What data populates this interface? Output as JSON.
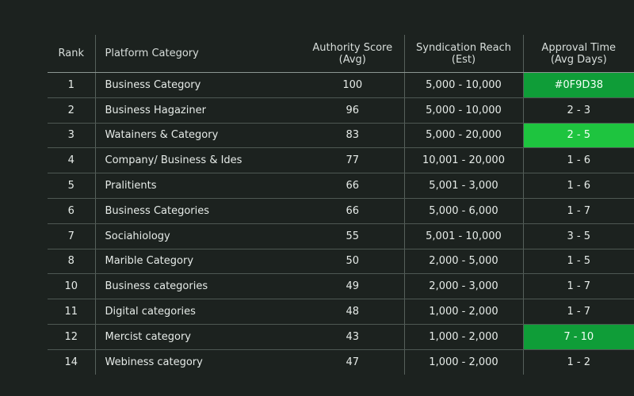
{
  "headers": {
    "rank": "Rank",
    "category": "Platform Category",
    "authority_line1": "Authority Score",
    "authority_line2": "(Avg)",
    "reach_line1": "Syndication Reach",
    "reach_line2": "(Est)",
    "approval_line1": "Approval Time",
    "approval_line2": "(Avg Days)"
  },
  "rows": [
    {
      "rank": "1",
      "category": "Business Category",
      "authority": "100",
      "reach": "5,000 - 10,000",
      "approval": "#0F9D38",
      "highlight": "dark"
    },
    {
      "rank": "2",
      "category": "Business Hagaziner",
      "authority": "96",
      "reach": "5,000 - 10,000",
      "approval": "2 - 3",
      "highlight": ""
    },
    {
      "rank": "3",
      "category": "Watainers & Category",
      "authority": "83",
      "reach": "5,000 - 20,000",
      "approval": "2 - 5",
      "highlight": "bright"
    },
    {
      "rank": "4",
      "category": "Company/ Business & Ides",
      "authority": "77",
      "reach": "10,001 - 20,000",
      "approval": "1 - 6",
      "highlight": ""
    },
    {
      "rank": "5",
      "category": "Pralitients",
      "authority": "66",
      "reach": "5,001 - 3,000",
      "approval": "1 - 6",
      "highlight": ""
    },
    {
      "rank": "6",
      "category": "Business Categories",
      "authority": "66",
      "reach": "5,000 - 6,000",
      "approval": "1 - 7",
      "highlight": ""
    },
    {
      "rank": "7",
      "category": "Sociahiology",
      "authority": "55",
      "reach": "5,001 - 10,000",
      "approval": "3 - 5",
      "highlight": ""
    },
    {
      "rank": "8",
      "category": "Marible Category",
      "authority": "50",
      "reach": "2,000 - 5,000",
      "approval": "1 - 5",
      "highlight": ""
    },
    {
      "rank": "10",
      "category": "Business categories",
      "authority": "49",
      "reach": "2,000 - 3,000",
      "approval": "1 - 7",
      "highlight": ""
    },
    {
      "rank": "11",
      "category": "Digital categories",
      "authority": "48",
      "reach": "1,000 - 2,000",
      "approval": "1 - 7",
      "highlight": ""
    },
    {
      "rank": "12",
      "category": "Mercist category",
      "authority": "43",
      "reach": "1,000 - 2,000",
      "approval": "7 - 10",
      "highlight": "dark"
    },
    {
      "rank": "14",
      "category": "Webiness category",
      "authority": "47",
      "reach": "1,000 - 2,000",
      "approval": "1 - 2",
      "highlight": ""
    }
  ],
  "colors": {
    "background": "#1c221f",
    "highlight_dark": "#0f9d38",
    "highlight_bright": "#1ec43f"
  }
}
